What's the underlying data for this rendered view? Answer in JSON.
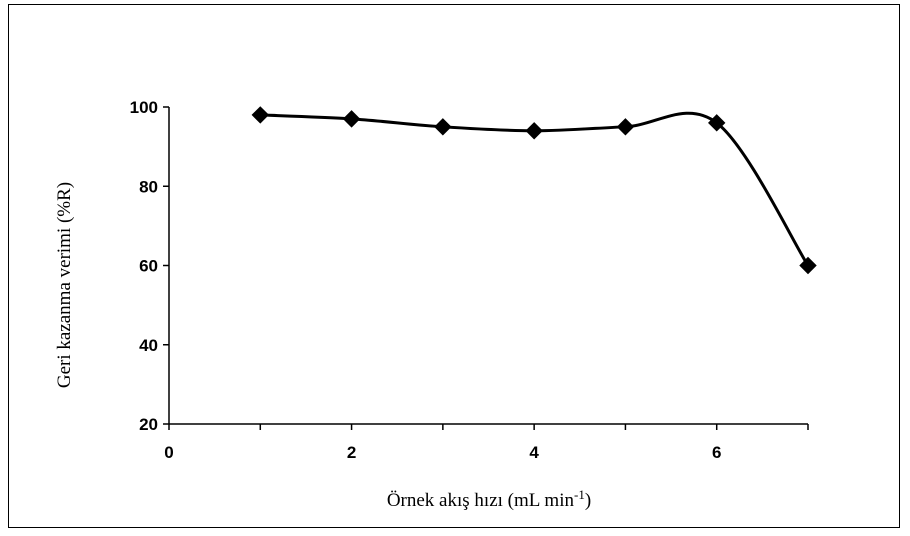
{
  "chart_data": {
    "type": "line",
    "title": "",
    "xlabel": "Örnek akış hızı (mL min",
    "xlabel_superscript": "-1",
    "xlabel_suffix": ")",
    "ylabel": "Geri kazanma verimi (%R)",
    "xlim": [
      0,
      7
    ],
    "ylim": [
      20,
      100
    ],
    "x_ticks": [
      "0",
      "2",
      "4",
      "6"
    ],
    "y_ticks": [
      "20",
      "40",
      "60",
      "80",
      "100"
    ],
    "grid": false,
    "legend": "none",
    "line_style": "smoothed",
    "marker": "diamond",
    "series": [
      {
        "x": [
          1,
          2,
          3,
          4,
          5,
          6,
          7
        ],
        "values": [
          98,
          97,
          95,
          94,
          95,
          96,
          60
        ],
        "color": "#000000"
      }
    ]
  }
}
